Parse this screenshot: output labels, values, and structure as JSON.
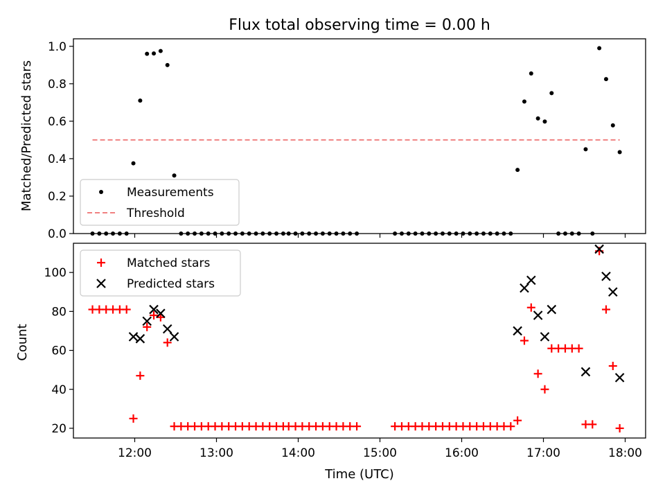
{
  "chart_data": [
    {
      "type": "scatter",
      "title": "Flux total observing time = 0.00 h",
      "ylabel": "Matched/Predicted stars",
      "xlabel": "",
      "xlim": [
        "11:15",
        "18:15"
      ],
      "ylim": [
        0,
        1.04
      ],
      "yticks": [
        "0.0",
        "0.2",
        "0.4",
        "0.6",
        "0.8",
        "1.0"
      ],
      "grid": false,
      "legend": "lower-left",
      "series": [
        {
          "name": "Measurements",
          "color": "#000000",
          "marker": "dot",
          "points": [
            [
              "11:29",
              0
            ],
            [
              "11:34",
              0
            ],
            [
              "11:39",
              0
            ],
            [
              "11:44",
              0
            ],
            [
              "11:49",
              0
            ],
            [
              "11:54",
              0
            ],
            [
              "11:59",
              0.375
            ],
            [
              "12:04",
              0.71
            ],
            [
              "12:09",
              0.96
            ],
            [
              "12:14",
              0.962
            ],
            [
              "12:19",
              0.975
            ],
            [
              "12:24",
              0.9
            ],
            [
              "12:29",
              0.31
            ],
            [
              "12:34",
              0
            ],
            [
              "12:39",
              0
            ],
            [
              "12:44",
              0
            ],
            [
              "12:49",
              0
            ],
            [
              "12:54",
              0
            ],
            [
              "12:59",
              0
            ],
            [
              "13:04",
              0
            ],
            [
              "13:09",
              0
            ],
            [
              "13:14",
              0
            ],
            [
              "13:19",
              0
            ],
            [
              "13:24",
              0
            ],
            [
              "13:29",
              0
            ],
            [
              "13:34",
              0
            ],
            [
              "13:39",
              0
            ],
            [
              "13:44",
              0
            ],
            [
              "13:49",
              0
            ],
            [
              "13:53",
              0
            ],
            [
              "13:58",
              0
            ],
            [
              "14:03",
              0
            ],
            [
              "14:08",
              0
            ],
            [
              "14:13",
              0
            ],
            [
              "14:18",
              0
            ],
            [
              "14:23",
              0
            ],
            [
              "14:28",
              0
            ],
            [
              "14:33",
              0
            ],
            [
              "14:38",
              0
            ],
            [
              "14:43",
              0
            ],
            [
              "15:11",
              0
            ],
            [
              "15:16",
              0
            ],
            [
              "15:21",
              0
            ],
            [
              "15:26",
              0
            ],
            [
              "15:31",
              0
            ],
            [
              "15:36",
              0
            ],
            [
              "15:41",
              0
            ],
            [
              "15:46",
              0
            ],
            [
              "15:51",
              0
            ],
            [
              "15:56",
              0
            ],
            [
              "16:01",
              0
            ],
            [
              "16:06",
              0
            ],
            [
              "16:11",
              0
            ],
            [
              "16:16",
              0
            ],
            [
              "16:21",
              0
            ],
            [
              "16:26",
              0
            ],
            [
              "16:31",
              0
            ],
            [
              "16:36",
              0
            ],
            [
              "16:41",
              0.34
            ],
            [
              "16:46",
              0.705
            ],
            [
              "16:51",
              0.855
            ],
            [
              "16:56",
              0.615
            ],
            [
              "17:01",
              0.598
            ],
            [
              "17:06",
              0.75
            ],
            [
              "17:11",
              0
            ],
            [
              "17:16",
              0
            ],
            [
              "17:21",
              0
            ],
            [
              "17:26",
              0
            ],
            [
              "17:31",
              0.45
            ],
            [
              "17:36",
              0
            ],
            [
              "17:41",
              0.99
            ],
            [
              "17:46",
              0.825
            ],
            [
              "17:51",
              0.578
            ],
            [
              "17:56",
              0.435
            ]
          ]
        },
        {
          "name": "Threshold",
          "color": "#f08080",
          "style": "dashed",
          "points": [
            [
              "11:29",
              0.5
            ],
            [
              "17:56",
              0.5
            ]
          ]
        }
      ]
    },
    {
      "type": "scatter",
      "title": "",
      "ylabel": "Count",
      "xlabel": "Time (UTC)",
      "xlim": [
        "11:15",
        "18:15"
      ],
      "ylim": [
        15,
        115
      ],
      "xticks": [
        "12:00",
        "13:00",
        "14:00",
        "15:00",
        "16:00",
        "17:00",
        "18:00"
      ],
      "yticks": [
        "20",
        "40",
        "60",
        "80",
        "100"
      ],
      "grid": false,
      "legend": "upper-left",
      "series": [
        {
          "name": "Matched stars",
          "color": "#ff0000",
          "marker": "plus",
          "points": [
            [
              "11:29",
              81
            ],
            [
              "11:34",
              81
            ],
            [
              "11:39",
              81
            ],
            [
              "11:44",
              81
            ],
            [
              "11:49",
              81
            ],
            [
              "11:54",
              81
            ],
            [
              "11:59",
              25
            ],
            [
              "12:04",
              47
            ],
            [
              "12:09",
              72
            ],
            [
              "12:14",
              78
            ],
            [
              "12:19",
              77
            ],
            [
              "12:24",
              64
            ],
            [
              "12:29",
              21
            ],
            [
              "12:34",
              21
            ],
            [
              "12:39",
              21
            ],
            [
              "12:44",
              21
            ],
            [
              "12:49",
              21
            ],
            [
              "12:54",
              21
            ],
            [
              "12:59",
              21
            ],
            [
              "13:04",
              21
            ],
            [
              "13:09",
              21
            ],
            [
              "13:14",
              21
            ],
            [
              "13:19",
              21
            ],
            [
              "13:24",
              21
            ],
            [
              "13:29",
              21
            ],
            [
              "13:34",
              21
            ],
            [
              "13:39",
              21
            ],
            [
              "13:44",
              21
            ],
            [
              "13:49",
              21
            ],
            [
              "13:53",
              21
            ],
            [
              "13:58",
              21
            ],
            [
              "14:03",
              21
            ],
            [
              "14:08",
              21
            ],
            [
              "14:13",
              21
            ],
            [
              "14:18",
              21
            ],
            [
              "14:23",
              21
            ],
            [
              "14:28",
              21
            ],
            [
              "14:33",
              21
            ],
            [
              "14:38",
              21
            ],
            [
              "14:43",
              21
            ],
            [
              "15:11",
              21
            ],
            [
              "15:16",
              21
            ],
            [
              "15:21",
              21
            ],
            [
              "15:26",
              21
            ],
            [
              "15:31",
              21
            ],
            [
              "15:36",
              21
            ],
            [
              "15:41",
              21
            ],
            [
              "15:46",
              21
            ],
            [
              "15:51",
              21
            ],
            [
              "15:56",
              21
            ],
            [
              "16:01",
              21
            ],
            [
              "16:06",
              21
            ],
            [
              "16:11",
              21
            ],
            [
              "16:16",
              21
            ],
            [
              "16:21",
              21
            ],
            [
              "16:26",
              21
            ],
            [
              "16:31",
              21
            ],
            [
              "16:36",
              21
            ],
            [
              "16:41",
              24
            ],
            [
              "16:46",
              65
            ],
            [
              "16:51",
              82
            ],
            [
              "16:56",
              48
            ],
            [
              "17:01",
              40
            ],
            [
              "17:06",
              61
            ],
            [
              "17:11",
              61
            ],
            [
              "17:16",
              61
            ],
            [
              "17:21",
              61
            ],
            [
              "17:26",
              61
            ],
            [
              "17:31",
              22
            ],
            [
              "17:36",
              22
            ],
            [
              "17:41",
              111
            ],
            [
              "17:46",
              81
            ],
            [
              "17:51",
              52
            ],
            [
              "17:56",
              20
            ]
          ]
        },
        {
          "name": "Predicted stars",
          "color": "#000000",
          "marker": "x",
          "points": [
            [
              "11:59",
              67
            ],
            [
              "12:04",
              66
            ],
            [
              "12:09",
              75
            ],
            [
              "12:14",
              81
            ],
            [
              "12:19",
              79
            ],
            [
              "12:24",
              71
            ],
            [
              "12:29",
              67
            ],
            [
              "16:41",
              70
            ],
            [
              "16:46",
              92
            ],
            [
              "16:51",
              96
            ],
            [
              "16:56",
              78
            ],
            [
              "17:01",
              67
            ],
            [
              "17:06",
              81
            ],
            [
              "17:31",
              49
            ],
            [
              "17:41",
              112
            ],
            [
              "17:46",
              98
            ],
            [
              "17:51",
              90
            ],
            [
              "17:56",
              46
            ]
          ]
        }
      ]
    }
  ]
}
